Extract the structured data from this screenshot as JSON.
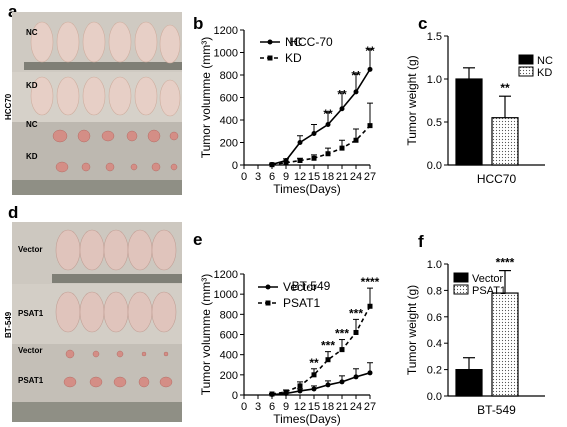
{
  "panels": {
    "a": "a",
    "b": "b",
    "c": "c",
    "d": "d",
    "e": "e",
    "f": "f"
  },
  "photo_a": {
    "side_label": "HCC70",
    "rows": [
      "NC",
      "KD",
      "NC",
      "KD"
    ]
  },
  "photo_d": {
    "side_label": "BT-549",
    "rows": [
      "Vector",
      "PSAT1",
      "Vector",
      "PSAT1"
    ]
  },
  "colors": {
    "photo_bg": "#b9b4ad",
    "mouse": "#e7cfc6",
    "tumor": "#d48e86",
    "ruler": "#8f8f85"
  },
  "chart_data": [
    {
      "id": "b",
      "type": "line",
      "title": "HCC-70",
      "xlabel": "Times(Days)",
      "ylabel": "Tumor volumme (mm³)",
      "x": [
        6,
        9,
        12,
        15,
        18,
        21,
        24,
        27
      ],
      "xticks": [
        "0",
        "3",
        "6",
        "9",
        "12",
        "15",
        "18",
        "21",
        "24",
        "27"
      ],
      "yticks": [
        "0",
        "200",
        "400",
        "600",
        "800",
        "1000",
        "1200"
      ],
      "xlim": [
        0,
        27
      ],
      "ylim": [
        0,
        1200
      ],
      "series": [
        {
          "name": "NC",
          "values": [
            5,
            40,
            200,
            280,
            360,
            500,
            650,
            850
          ],
          "err": [
            5,
            15,
            60,
            80,
            110,
            150,
            160,
            180
          ]
        },
        {
          "name": "KD",
          "values": [
            3,
            20,
            40,
            60,
            100,
            150,
            220,
            350
          ],
          "err": [
            3,
            10,
            20,
            30,
            50,
            70,
            100,
            200
          ]
        }
      ],
      "annotations": [
        {
          "x": 18,
          "y": 420,
          "text": "**"
        },
        {
          "x": 21,
          "y": 590,
          "text": "**"
        },
        {
          "x": 24,
          "y": 760,
          "text": "**"
        },
        {
          "x": 27,
          "y": 980,
          "text": "**"
        }
      ],
      "legend": "top-left"
    },
    {
      "id": "c",
      "type": "bar",
      "xlabel": "HCC70",
      "ylabel": "Tumor weight (g)",
      "categories": [
        "NC",
        "KD"
      ],
      "values": [
        1.0,
        0.55
      ],
      "err": [
        0.13,
        0.25
      ],
      "yticks": [
        "0.0",
        "0.5",
        "1.0",
        "1.5"
      ],
      "ylim": [
        0,
        1.5
      ],
      "annotations": [
        {
          "category": "KD",
          "text": "**"
        }
      ],
      "legend": "top-right"
    },
    {
      "id": "e",
      "type": "line",
      "title": "BT-549",
      "xlabel": "Times(Days)",
      "ylabel": "Tumor volumme (mm³)",
      "x": [
        6,
        9,
        12,
        15,
        18,
        21,
        24,
        27
      ],
      "xticks": [
        "0",
        "3",
        "6",
        "9",
        "12",
        "15",
        "18",
        "21",
        "24",
        "27"
      ],
      "yticks": [
        "0",
        "200",
        "400",
        "600",
        "800",
        "1000",
        "1200"
      ],
      "xlim": [
        0,
        27
      ],
      "ylim": [
        0,
        1200
      ],
      "series": [
        {
          "name": "Vector",
          "values": [
            5,
            15,
            40,
            60,
            100,
            130,
            180,
            220
          ],
          "err": [
            3,
            8,
            20,
            30,
            40,
            60,
            80,
            100
          ]
        },
        {
          "name": "PSAT1",
          "values": [
            10,
            30,
            90,
            200,
            350,
            450,
            620,
            880
          ],
          "err": [
            5,
            20,
            40,
            60,
            80,
            100,
            130,
            180
          ]
        }
      ],
      "annotations": [
        {
          "x": 15,
          "y": 280,
          "text": "**"
        },
        {
          "x": 18,
          "y": 450,
          "text": "***"
        },
        {
          "x": 21,
          "y": 570,
          "text": "***"
        },
        {
          "x": 24,
          "y": 770,
          "text": "***"
        },
        {
          "x": 27,
          "y": 1080,
          "text": "****"
        }
      ],
      "legend": "top-left"
    },
    {
      "id": "f",
      "type": "bar",
      "xlabel": "BT-549",
      "ylabel": "Tumor weight (g)",
      "categories": [
        "Vector",
        "PSAT1"
      ],
      "values": [
        0.2,
        0.78
      ],
      "err": [
        0.09,
        0.17
      ],
      "yticks": [
        "0.0",
        "0.2",
        "0.4",
        "0.6",
        "0.8",
        "1.0"
      ],
      "ylim": [
        0,
        1.0
      ],
      "annotations": [
        {
          "category": "PSAT1",
          "text": "****"
        }
      ],
      "legend": "top-left"
    }
  ]
}
